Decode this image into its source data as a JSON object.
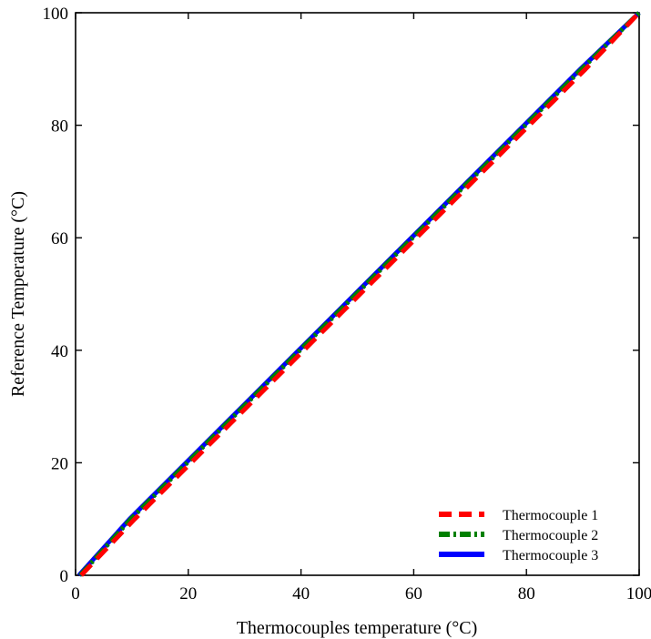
{
  "chart_data": {
    "type": "line",
    "title": "",
    "xlabel": "Thermocouples temperature (°C)",
    "ylabel": "Reference Temperature (°C)",
    "xlim": [
      0,
      100
    ],
    "ylim": [
      0,
      100
    ],
    "x_ticks": [
      0,
      20,
      40,
      60,
      80,
      100
    ],
    "y_ticks": [
      0,
      20,
      40,
      60,
      80,
      100
    ],
    "x_tick_labels": [
      "0",
      "20",
      "40",
      "60",
      "80",
      "100"
    ],
    "y_tick_labels": [
      "0",
      "20",
      "40",
      "60",
      "80",
      "100"
    ],
    "grid": false,
    "legend_position": "bottom-right",
    "series": [
      {
        "name": "Thermocouple 1",
        "color": "#ff0000",
        "style": "dashed",
        "x": [
          1,
          10.5,
          20.5,
          30.5,
          40.5,
          50.5,
          60.5,
          70.5,
          80.5,
          90.5,
          100
        ],
        "y": [
          0,
          10,
          20,
          30,
          40,
          50,
          60,
          70,
          80,
          90,
          100
        ]
      },
      {
        "name": "Thermocouple 2",
        "color": "#008000",
        "style": "dash-dot",
        "x": [
          0.8,
          9.8,
          19.8,
          29.8,
          39.8,
          49.8,
          59.8,
          69.8,
          79.8,
          89.8,
          100
        ],
        "y": [
          0,
          10,
          20,
          30,
          40,
          50,
          60,
          70,
          80,
          90,
          100
        ]
      },
      {
        "name": "Thermocouple 3",
        "color": "#0000ff",
        "style": "solid",
        "x": [
          0.6,
          9.6,
          19.6,
          29.6,
          39.6,
          49.6,
          59.6,
          69.6,
          79.6,
          89.6,
          100
        ],
        "y": [
          0,
          10,
          20,
          30,
          40,
          50,
          60,
          70,
          80,
          90,
          100
        ]
      }
    ]
  }
}
